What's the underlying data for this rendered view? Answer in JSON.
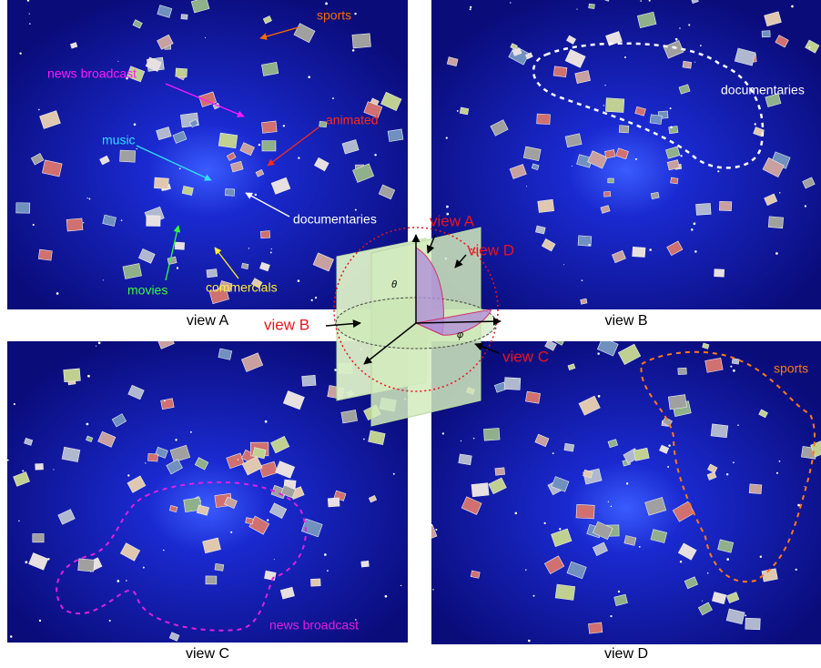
{
  "panels": [
    {
      "caption": "view A",
      "annotations": [
        "sports",
        "news broadcast",
        "animated",
        "music",
        "documentaries",
        "movies",
        "commercials"
      ]
    },
    {
      "caption": "view B",
      "annotations": [
        "documentaries"
      ]
    },
    {
      "caption": "view C",
      "annotations": [
        "news broadcast"
      ]
    },
    {
      "caption": "view D",
      "annotations": [
        "sports"
      ]
    }
  ],
  "diagram": {
    "labels": [
      "view A",
      "view D",
      "view B",
      "view C"
    ],
    "symbols": [
      "θ",
      "φ"
    ]
  }
}
